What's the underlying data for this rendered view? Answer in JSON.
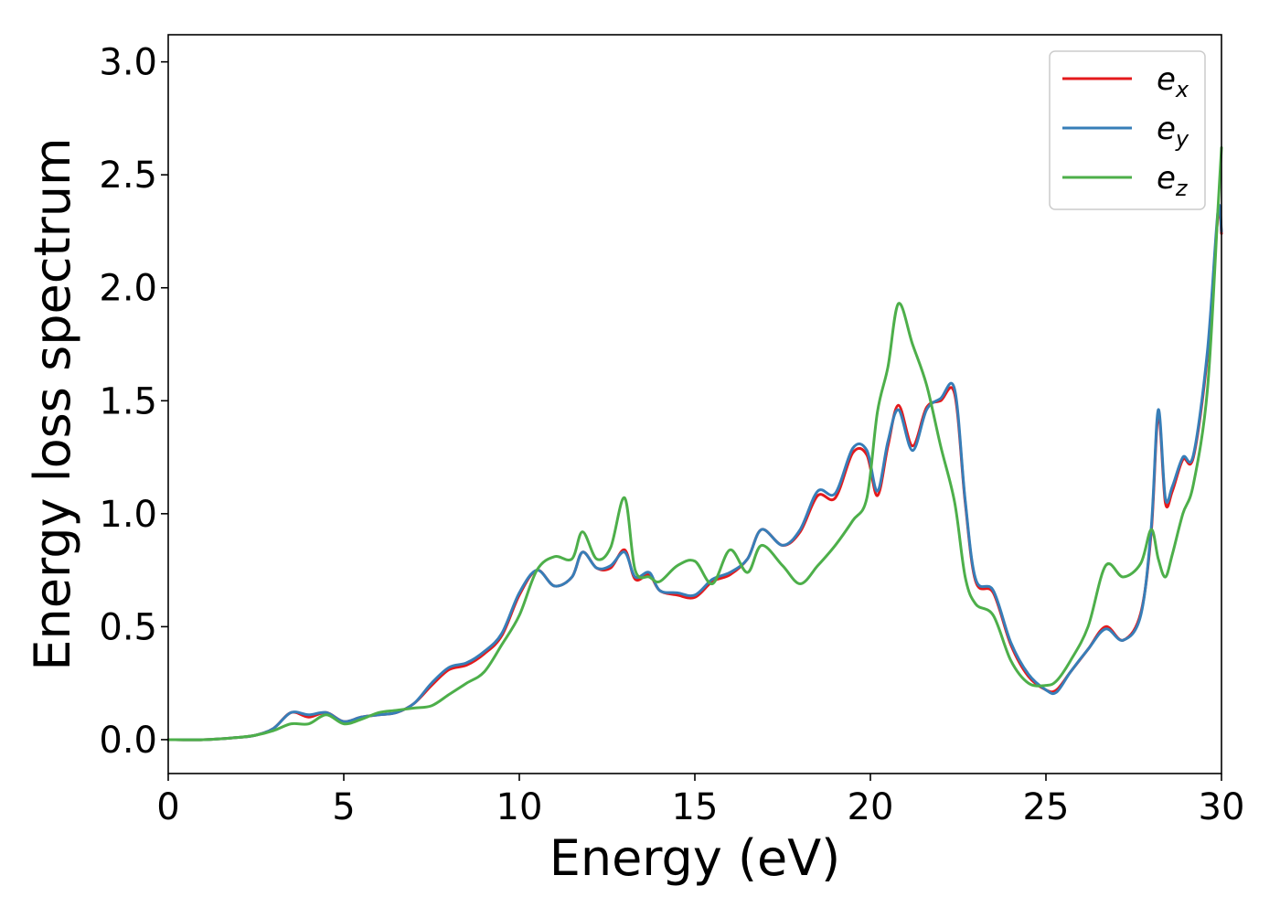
{
  "chart_data": {
    "type": "line",
    "title": "",
    "xlabel": "Energy (eV)",
    "ylabel": "Energy loss spectrum",
    "xlim": [
      0,
      30
    ],
    "ylim": [
      -0.15,
      3.12
    ],
    "xticks": [
      0,
      5,
      10,
      15,
      20,
      25,
      30
    ],
    "xtick_labels": [
      "0",
      "5",
      "10",
      "15",
      "20",
      "25",
      "30"
    ],
    "yticks": [
      0.0,
      0.5,
      1.0,
      1.5,
      2.0,
      2.5,
      3.0
    ],
    "ytick_labels": [
      "0.0",
      "0.5",
      "1.0",
      "1.5",
      "2.0",
      "2.5",
      "3.0"
    ],
    "grid": false,
    "legend_position": "top-right",
    "series": [
      {
        "name": "e_x",
        "legend_base": "e",
        "legend_sub": "x",
        "color": "#e41a1c",
        "x": [
          0,
          1,
          2,
          2.5,
          3,
          3.5,
          4,
          4.5,
          5,
          5.5,
          6,
          6.5,
          7,
          7.5,
          8,
          8.5,
          9,
          9.5,
          10,
          10.5,
          11,
          11.5,
          11.8,
          12.2,
          12.6,
          13.0,
          13.3,
          13.7,
          14.0,
          14.5,
          15.0,
          15.5,
          16.0,
          16.5,
          16.9,
          17.5,
          18.0,
          18.5,
          19.0,
          19.5,
          19.9,
          20.2,
          20.5,
          20.8,
          21.2,
          21.6,
          22.0,
          22.4,
          22.7,
          23.0,
          23.5,
          24.0,
          24.5,
          25.0,
          25.3,
          25.7,
          26.2,
          26.7,
          27.2,
          27.7,
          28.0,
          28.2,
          28.4,
          28.6,
          28.9,
          29.2,
          29.6,
          29.9,
          30.0
        ],
        "y": [
          0.0,
          0.0,
          0.01,
          0.02,
          0.05,
          0.12,
          0.1,
          0.12,
          0.08,
          0.1,
          0.11,
          0.12,
          0.16,
          0.24,
          0.31,
          0.33,
          0.38,
          0.46,
          0.64,
          0.75,
          0.68,
          0.72,
          0.83,
          0.76,
          0.76,
          0.84,
          0.71,
          0.73,
          0.66,
          0.64,
          0.63,
          0.7,
          0.73,
          0.8,
          0.93,
          0.86,
          0.92,
          1.08,
          1.07,
          1.27,
          1.26,
          1.08,
          1.3,
          1.48,
          1.3,
          1.47,
          1.5,
          1.53,
          1.05,
          0.7,
          0.65,
          0.42,
          0.28,
          0.22,
          0.22,
          0.3,
          0.4,
          0.5,
          0.44,
          0.56,
          0.92,
          1.44,
          1.05,
          1.1,
          1.24,
          1.25,
          1.7,
          2.32,
          2.24
        ]
      },
      {
        "name": "e_y",
        "legend_base": "e",
        "legend_sub": "y",
        "color": "#377eb8",
        "x": [
          0,
          1,
          2,
          2.5,
          3,
          3.5,
          4,
          4.5,
          5,
          5.5,
          6,
          6.5,
          7,
          7.5,
          8,
          8.5,
          9,
          9.5,
          10,
          10.5,
          11,
          11.5,
          11.8,
          12.2,
          12.6,
          13.0,
          13.3,
          13.7,
          14.0,
          14.5,
          15.0,
          15.5,
          16.0,
          16.5,
          16.9,
          17.5,
          18.0,
          18.5,
          19.0,
          19.5,
          19.9,
          20.2,
          20.5,
          20.8,
          21.2,
          21.6,
          22.0,
          22.4,
          22.7,
          23.0,
          23.5,
          24.0,
          24.5,
          25.0,
          25.3,
          25.7,
          26.2,
          26.7,
          27.2,
          27.7,
          28.0,
          28.2,
          28.4,
          28.6,
          28.9,
          29.2,
          29.6,
          29.9,
          30.0
        ],
        "y": [
          0.0,
          0.0,
          0.01,
          0.02,
          0.05,
          0.12,
          0.11,
          0.12,
          0.08,
          0.1,
          0.11,
          0.12,
          0.16,
          0.25,
          0.32,
          0.34,
          0.39,
          0.47,
          0.65,
          0.75,
          0.68,
          0.72,
          0.83,
          0.76,
          0.77,
          0.83,
          0.72,
          0.74,
          0.66,
          0.65,
          0.64,
          0.71,
          0.74,
          0.8,
          0.93,
          0.86,
          0.93,
          1.1,
          1.09,
          1.29,
          1.28,
          1.1,
          1.32,
          1.46,
          1.28,
          1.46,
          1.51,
          1.55,
          1.06,
          0.71,
          0.66,
          0.43,
          0.29,
          0.22,
          0.21,
          0.3,
          0.4,
          0.49,
          0.44,
          0.55,
          0.94,
          1.46,
          1.07,
          1.12,
          1.25,
          1.26,
          1.72,
          2.34,
          2.25
        ]
      },
      {
        "name": "e_z",
        "legend_base": "e",
        "legend_sub": "z",
        "color": "#4daf4a",
        "x": [
          0,
          1,
          2,
          2.5,
          3,
          3.5,
          4,
          4.5,
          5,
          5.5,
          6,
          6.5,
          7,
          7.5,
          8,
          8.5,
          9,
          9.5,
          10,
          10.5,
          11,
          11.5,
          11.8,
          12.2,
          12.6,
          13.0,
          13.3,
          13.7,
          14.0,
          14.5,
          15.0,
          15.5,
          16.0,
          16.5,
          16.9,
          17.5,
          18.0,
          18.5,
          19.0,
          19.5,
          19.9,
          20.2,
          20.5,
          20.8,
          21.2,
          21.6,
          22.0,
          22.4,
          22.7,
          23.0,
          23.5,
          24.0,
          24.5,
          25.0,
          25.3,
          25.7,
          26.2,
          26.7,
          27.2,
          27.7,
          28.0,
          28.2,
          28.4,
          28.6,
          28.9,
          29.2,
          29.6,
          29.9,
          30.0
        ],
        "y": [
          0.0,
          0.0,
          0.01,
          0.02,
          0.04,
          0.07,
          0.07,
          0.11,
          0.07,
          0.09,
          0.12,
          0.13,
          0.14,
          0.15,
          0.2,
          0.25,
          0.3,
          0.42,
          0.55,
          0.75,
          0.81,
          0.8,
          0.92,
          0.8,
          0.85,
          1.07,
          0.75,
          0.72,
          0.7,
          0.77,
          0.79,
          0.69,
          0.84,
          0.74,
          0.86,
          0.77,
          0.69,
          0.77,
          0.86,
          0.97,
          1.07,
          1.45,
          1.65,
          1.93,
          1.75,
          1.57,
          1.3,
          1.05,
          0.72,
          0.6,
          0.55,
          0.35,
          0.25,
          0.24,
          0.26,
          0.35,
          0.5,
          0.77,
          0.72,
          0.78,
          0.93,
          0.8,
          0.72,
          0.82,
          1.0,
          1.13,
          1.55,
          2.35,
          2.62
        ]
      }
    ]
  }
}
